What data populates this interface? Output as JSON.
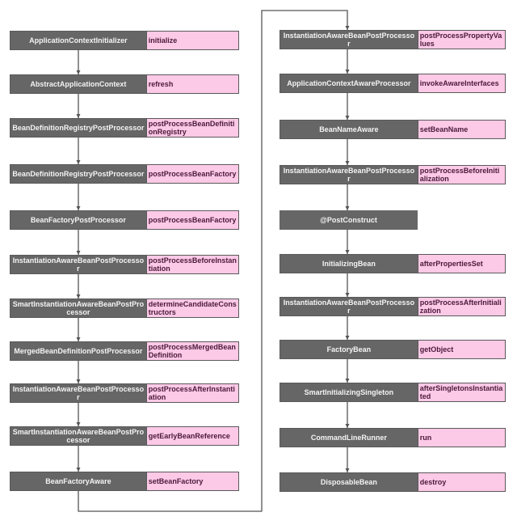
{
  "colors": {
    "class_bg": "#666666",
    "method_bg": "#fcc9e6",
    "method_text": "#4a1a3c",
    "connector": "#555555"
  },
  "left_column": [
    {
      "class": "ApplicationContextInitializer",
      "method": "initialize"
    },
    {
      "class": "AbstractApplicationContext",
      "method": "refresh"
    },
    {
      "class": "BeanDefinitionRegistryPostProcessor",
      "method": "postProcessBeanDefinitionRegistry"
    },
    {
      "class": "BeanDefinitionRegistryPostProcessor",
      "method": "postProcessBeanFactory"
    },
    {
      "class": "BeanFactoryPostProcessor",
      "method": "postProcessBeanFactory"
    },
    {
      "class": "InstantiationAwareBeanPostProcessor",
      "method": "postProcessBeforeInstantiation"
    },
    {
      "class": "SmartInstantiationAwareBeanPostProcessor",
      "method": "determineCandidateConstructors"
    },
    {
      "class": "MergedBeanDefinitionPostProcessor",
      "method": "postProcessMergedBeanDefinition"
    },
    {
      "class": "InstantiationAwareBeanPostProcessor",
      "method": "postProcessAfterInstantiation"
    },
    {
      "class": "SmartInstantiationAwareBeanPostProcessor",
      "method": "getEarlyBeanReference"
    },
    {
      "class": "BeanFactoryAware",
      "method": "setBeanFactory"
    }
  ],
  "right_column": [
    {
      "class": "InstantiationAwareBeanPostProcessor",
      "method": "postProcessPropertyValues"
    },
    {
      "class": "ApplicationContextAwareProcessor",
      "method": "invokeAwareInterfaces"
    },
    {
      "class": "BeanNameAware",
      "method": "setBeanName"
    },
    {
      "class": "InstantiationAwareBeanPostProcessor",
      "method": "postProcessBeforeInitialization"
    },
    {
      "class": "@PostConstruct",
      "method": ""
    },
    {
      "class": "InitializingBean",
      "method": "afterPropertiesSet"
    },
    {
      "class": "InstantiationAwareBeanPostProcessor",
      "method": "postProcessAfterInitialization"
    },
    {
      "class": "FactoryBean",
      "method": "getObject"
    },
    {
      "class": "SmartInitializingSingleton",
      "method": "afterSingletonsInstantiated"
    },
    {
      "class": "CommandLineRunner",
      "method": "run"
    },
    {
      "class": "DisposableBean",
      "method": "destroy"
    }
  ]
}
